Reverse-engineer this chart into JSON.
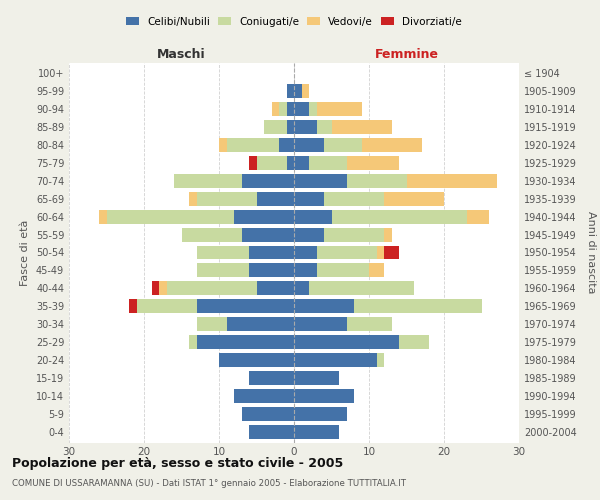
{
  "age_groups": [
    "0-4",
    "5-9",
    "10-14",
    "15-19",
    "20-24",
    "25-29",
    "30-34",
    "35-39",
    "40-44",
    "45-49",
    "50-54",
    "55-59",
    "60-64",
    "65-69",
    "70-74",
    "75-79",
    "80-84",
    "85-89",
    "90-94",
    "95-99",
    "100+"
  ],
  "birth_years": [
    "2000-2004",
    "1995-1999",
    "1990-1994",
    "1985-1989",
    "1980-1984",
    "1975-1979",
    "1970-1974",
    "1965-1969",
    "1960-1964",
    "1955-1959",
    "1950-1954",
    "1945-1949",
    "1940-1944",
    "1935-1939",
    "1930-1934",
    "1925-1929",
    "1920-1924",
    "1915-1919",
    "1910-1914",
    "1905-1909",
    "≤ 1904"
  ],
  "male_celibi": [
    6,
    7,
    8,
    6,
    10,
    13,
    9,
    13,
    5,
    6,
    6,
    7,
    8,
    5,
    7,
    1,
    2,
    1,
    1,
    1,
    0
  ],
  "male_coniugati": [
    0,
    0,
    0,
    0,
    0,
    1,
    4,
    8,
    12,
    7,
    7,
    8,
    17,
    8,
    9,
    4,
    7,
    3,
    1,
    0,
    0
  ],
  "male_vedovi": [
    0,
    0,
    0,
    0,
    0,
    0,
    0,
    0,
    1,
    0,
    0,
    0,
    1,
    1,
    0,
    0,
    1,
    0,
    1,
    0,
    0
  ],
  "male_divorziati": [
    0,
    0,
    0,
    0,
    0,
    0,
    0,
    1,
    1,
    0,
    0,
    0,
    0,
    0,
    0,
    1,
    0,
    0,
    0,
    0,
    0
  ],
  "female_celibi": [
    6,
    7,
    8,
    6,
    11,
    14,
    7,
    8,
    2,
    3,
    3,
    4,
    5,
    4,
    7,
    2,
    4,
    3,
    2,
    1,
    0
  ],
  "female_coniugati": [
    0,
    0,
    0,
    0,
    1,
    4,
    6,
    17,
    14,
    7,
    8,
    8,
    18,
    8,
    8,
    5,
    5,
    2,
    1,
    0,
    0
  ],
  "female_vedovi": [
    0,
    0,
    0,
    0,
    0,
    0,
    0,
    0,
    0,
    2,
    1,
    1,
    3,
    8,
    12,
    7,
    8,
    8,
    6,
    1,
    0
  ],
  "female_divorziati": [
    0,
    0,
    0,
    0,
    0,
    0,
    0,
    0,
    0,
    0,
    2,
    0,
    0,
    0,
    0,
    0,
    0,
    0,
    0,
    0,
    0
  ],
  "color_celibi": "#4472a8",
  "color_coniugati": "#c8daa0",
  "color_vedovi": "#f5c878",
  "color_divorziati": "#cc2222",
  "title": "Popolazione per età, sesso e stato civile - 2005",
  "subtitle": "COMUNE DI USSARAMANNA (SU) - Dati ISTAT 1° gennaio 2005 - Elaborazione TUTTITALIA.IT",
  "xlabel_left": "Maschi",
  "xlabel_right": "Femmine",
  "ylabel_left": "Fasce di età",
  "ylabel_right": "Anni di nascita",
  "xlim": 30,
  "bg_color": "#f0f0e8",
  "plot_bg": "#ffffff",
  "grid_color": "#cccccc"
}
